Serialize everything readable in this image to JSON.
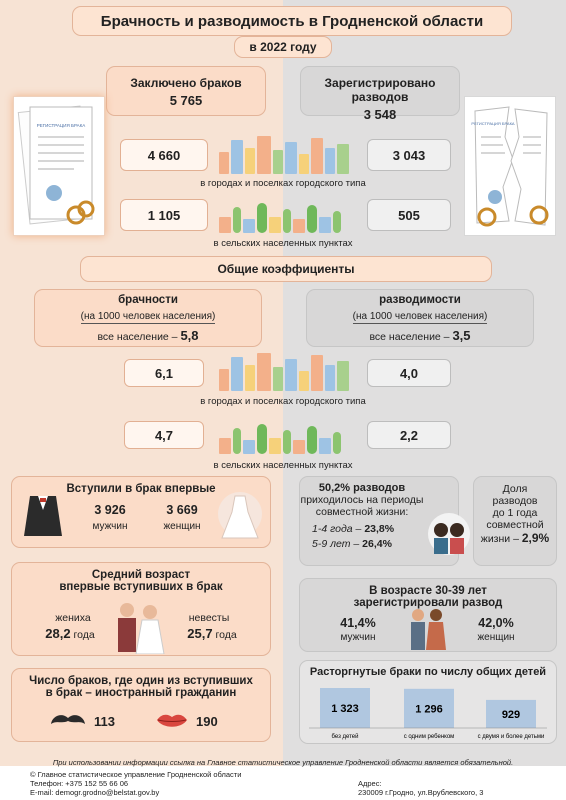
{
  "title": "Брачность и разводимость в Гродненской области",
  "year": "в 2022 году",
  "marriages": {
    "label": "Заключено браков",
    "value": "5 765",
    "urban": "4 660",
    "rural": "1 105"
  },
  "divorces": {
    "label": "Зарегистрировано разводов",
    "value": "3 548",
    "urban": "3 043",
    "rural": "505"
  },
  "urban_caption": "в городах и поселках городского типа",
  "rural_caption": "в сельских населенных пунктах",
  "doc_left_text": "РЕГИСТРАЦИЯ БРАКА",
  "doc_right_text": "РЕГИСТРАЦИЯ БРАКА",
  "general": {
    "title": "Общие коэффициенты",
    "marriage_rate": {
      "title": "брачности",
      "unit": "(на 1000 человек населения)",
      "all_label": "все население –",
      "all_value": "5,8",
      "urban": "6,1",
      "rural": "4,7"
    },
    "divorce_rate": {
      "title": "разводимости",
      "unit": "(на 1000 человек населения)",
      "all_label": "все население –",
      "all_value": "3,5",
      "urban": "4,0",
      "rural": "2,2"
    }
  },
  "first_marriage": {
    "title": "Вступили в брак впервые",
    "men_value": "3 926",
    "men_label": "мужчин",
    "women_value": "3 669",
    "women_label": "женщин"
  },
  "avg_age": {
    "title_line1": "Средний возраст",
    "title_line2": "впервые вступивших в брак",
    "groom_label": "жениха",
    "groom_value": "28,2",
    "bride_label": "невесты",
    "bride_value": "25,7",
    "unit": "года"
  },
  "foreign": {
    "title_line1": "Число браков, где один из вступивших",
    "title_line2": "в брак – иностранный гражданин",
    "men_value": "113",
    "women_value": "190"
  },
  "periods": {
    "line1": "50,2% разводов",
    "line2": "приходилось на периоды",
    "line3": "совместной жизни:",
    "p1_label": "1-4 года –",
    "p1_value": "23,8%",
    "p2_label": "5-9 лет –",
    "p2_value": "26,4%"
  },
  "short": {
    "line1": "Доля",
    "line2": "разводов",
    "line3": "до 1 года",
    "line4": "совместной",
    "line5": "жизни –",
    "value": "2,9%"
  },
  "age30": {
    "title_line1": "В возрасте 30-39 лет",
    "title_line2": "зарегистрировали развод",
    "men_value": "41,4%",
    "men_label": "мужчин",
    "women_value": "42,0%",
    "women_label": "женщин"
  },
  "chart_data": {
    "type": "bar",
    "title": "Расторгнутые браки по числу общих детей",
    "categories": [
      "без детей",
      "с одним ребенком",
      "с двумя и более детьми"
    ],
    "values": [
      1323,
      1296,
      929
    ],
    "value_labels": [
      "1 323",
      "1 296",
      "929"
    ]
  },
  "footer": {
    "note": "При использовании информации ссылка на Главное статистическое управление Гродненской области является обязательной.",
    "org": "© Главное статистическое управление Гродненской области",
    "phone": "Телефон: +375 152 55 66 06",
    "email": "E-mail: demogr.grodno@belstat.gov.by",
    "address_label": "Адрес:",
    "address": "230009 г.Гродно, ул.Врублевского, 3"
  },
  "colors": {
    "peach_bg": "#f7e3d4",
    "grey_bg": "#e0dfdf",
    "peach_box": "#fbdcc8",
    "grey_box": "#d8d7d7",
    "bar": "#b0c7e0"
  }
}
